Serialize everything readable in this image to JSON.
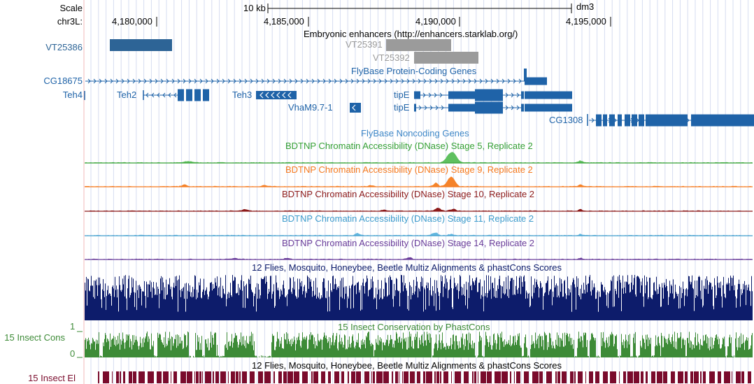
{
  "header": {
    "scale_label": "Scale",
    "scale_value": "10 kb",
    "assembly": "dm3",
    "chrom_label": "chr3L:",
    "positions": [
      "4,180,000",
      "4,185,000",
      "4,190,000",
      "4,195,000"
    ]
  },
  "tracks": {
    "enhancers": {
      "title": "Embryonic enhancers (http://enhancers.starklab.org/)",
      "items": [
        "VT25386",
        "VT25391",
        "VT25392"
      ]
    },
    "coding_genes": {
      "title": "FlyBase Protein-Coding Genes",
      "genes": [
        "CG18675",
        "Teh4",
        "Teh2",
        "Teh3",
        "VhaM9.7-1",
        "tipE",
        "tipE",
        "CG1308"
      ]
    },
    "noncoding_genes": {
      "title": "FlyBase Noncoding Genes"
    },
    "dnase": [
      {
        "title": "BDTNP Chromatin Accessibility (DNase) Stage 5, Replicate 2",
        "color": "#35a035",
        "fill": "#5fc05f"
      },
      {
        "title": "BDTNP Chromatin Accessibility (DNase) Stage 9, Replicate 2",
        "color": "#f57a1f",
        "fill": "#f5832a"
      },
      {
        "title": "BDTNP Chromatin Accessibility (DNase) Stage 10, Replicate 2",
        "color": "#8c1a1a",
        "fill": "#8c1a1a"
      },
      {
        "title": "BDTNP Chromatin Accessibility (DNase) Stage 11, Replicate 2",
        "color": "#3e9ccc",
        "fill": "#62b6df"
      },
      {
        "title": "BDTNP Chromatin Accessibility (DNase) Stage 14, Replicate 2",
        "color": "#6a3d9a",
        "fill": "#6a3d9a"
      }
    ],
    "multiz": {
      "title": "12 Flies, Mosquito, Honeybee, Beetle Multiz Alignments & phastCons Scores",
      "color": "#0d1c6b"
    },
    "phastcons": {
      "title": "15 Insect Conservation by PhastCons",
      "side_label": "15 Insect Cons",
      "axis_max": "1",
      "axis_min": "0",
      "color": "#3d8b37"
    },
    "elements": {
      "title": "12 Flies, Mosquito, Honeybee, Beetle Multiz Alignments & phastCons Scores",
      "side_label": "15 Insect El",
      "color": "#7a0b2c"
    }
  },
  "colors": {
    "gene": "#1f63a8",
    "enhancer": "#9b9b9b",
    "enhancer_first": "#2d6496",
    "gridline": "#d6dcf0"
  }
}
